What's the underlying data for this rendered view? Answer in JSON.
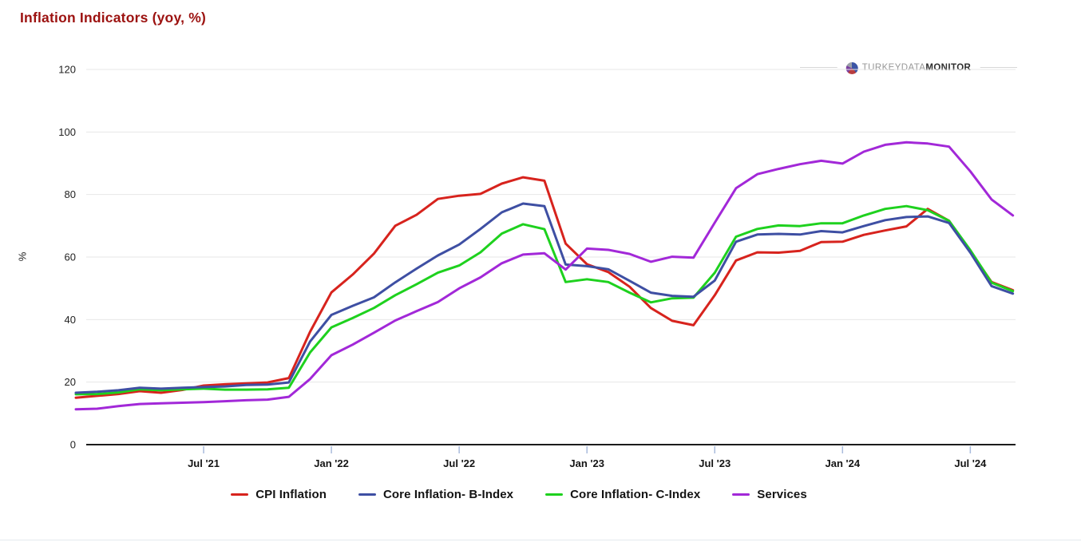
{
  "page": {
    "title": "Inflation Indicators (yoy, %)"
  },
  "branding": {
    "part1": "TURKEY",
    "part2": "DATA",
    "part3": "MONITOR"
  },
  "chart_data": {
    "type": "line",
    "title": "Inflation Indicators (yoy, %)",
    "xlabel": "",
    "ylabel": "%",
    "ylim": [
      0,
      120
    ],
    "y_ticks": [
      0,
      20,
      40,
      60,
      80,
      100,
      120
    ],
    "grid": "horizontal",
    "legend_position": "bottom",
    "months": [
      "Jan 2021",
      "Feb 2021",
      "Mar 2021",
      "Apr 2021",
      "May 2021",
      "Jun 2021",
      "Jul 2021",
      "Aug 2021",
      "Sep 2021",
      "Oct 2021",
      "Nov 2021",
      "Dec 2021",
      "Jan 2022",
      "Feb 2022",
      "Mar 2022",
      "Apr 2022",
      "May 2022",
      "Jun 2022",
      "Jul 2022",
      "Aug 2022",
      "Sep 2022",
      "Oct 2022",
      "Nov 2022",
      "Dec 2022",
      "Jan 2023",
      "Feb 2023",
      "Mar 2023",
      "Apr 2023",
      "May 2023",
      "Jun 2023",
      "Jul 2023",
      "Aug 2023",
      "Sep 2023",
      "Oct 2023",
      "Nov 2023",
      "Dec 2023",
      "Jan 2024",
      "Feb 2024",
      "Mar 2024",
      "Apr 2024",
      "May 2024",
      "Jun 2024",
      "Jul 2024",
      "Aug 2024",
      "Sep 2024"
    ],
    "x_ticks": [
      {
        "label": "Jul '21",
        "index": 6
      },
      {
        "label": "Jan '22",
        "index": 12
      },
      {
        "label": "Jul '22",
        "index": 18
      },
      {
        "label": "Jan '23",
        "index": 24
      },
      {
        "label": "Jul '23",
        "index": 30
      },
      {
        "label": "Jan '24",
        "index": 36
      },
      {
        "label": "Jul '24",
        "index": 42
      }
    ],
    "series": [
      {
        "name": "CPI Inflation",
        "color": "#d7231d",
        "values": [
          15.0,
          15.6,
          16.2,
          17.1,
          16.6,
          17.5,
          18.9,
          19.3,
          19.6,
          19.9,
          21.3,
          36.1,
          48.7,
          54.4,
          61.1,
          70.0,
          73.5,
          78.6,
          79.6,
          80.2,
          83.5,
          85.5,
          84.4,
          64.3,
          57.7,
          55.2,
          50.5,
          43.7,
          39.6,
          38.2,
          47.8,
          58.9,
          61.5,
          61.4,
          62.0,
          64.8,
          64.9,
          67.1,
          68.5,
          69.8,
          75.4,
          71.6,
          61.8,
          52.0,
          49.4
        ]
      },
      {
        "name": "Core Inflation- B-Index",
        "color": "#3e4fa3",
        "values": [
          16.6,
          16.9,
          17.4,
          18.2,
          17.9,
          18.2,
          18.4,
          18.6,
          19.1,
          19.2,
          19.9,
          33.0,
          41.5,
          44.4,
          47.1,
          51.9,
          56.3,
          60.5,
          64.0,
          69.0,
          74.3,
          77.1,
          76.3,
          57.6,
          57.1,
          56.1,
          52.4,
          48.6,
          47.6,
          47.3,
          52.5,
          64.9,
          67.2,
          67.4,
          67.2,
          68.3,
          67.9,
          69.9,
          71.8,
          72.8,
          73.0,
          70.9,
          61.4,
          50.7,
          48.3
        ]
      },
      {
        "name": "Core Inflation- C-Index",
        "color": "#1ed11e",
        "values": [
          16.1,
          16.2,
          16.7,
          17.7,
          17.4,
          17.7,
          17.9,
          17.6,
          17.6,
          17.7,
          18.2,
          29.5,
          37.5,
          40.5,
          43.7,
          47.8,
          51.3,
          55.0,
          57.3,
          61.5,
          67.5,
          70.5,
          68.9,
          52.0,
          52.9,
          52.0,
          48.6,
          45.5,
          46.8,
          47.0,
          55.0,
          66.5,
          69.0,
          70.1,
          69.9,
          70.8,
          70.8,
          73.3,
          75.4,
          76.3,
          75.0,
          71.6,
          62.2,
          51.8,
          49.1
        ]
      },
      {
        "name": "Services",
        "color": "#a228d8",
        "values": [
          11.3,
          11.5,
          12.3,
          13.0,
          13.2,
          13.4,
          13.6,
          13.9,
          14.2,
          14.4,
          15.3,
          21.0,
          28.6,
          32.0,
          35.8,
          39.7,
          42.7,
          45.6,
          50.0,
          53.5,
          58.0,
          60.8,
          61.2,
          56.0,
          62.7,
          62.3,
          61.0,
          58.5,
          60.1,
          59.8,
          71.0,
          82.0,
          86.5,
          88.2,
          89.7,
          90.8,
          89.9,
          93.7,
          95.9,
          96.7,
          96.3,
          95.3,
          87.4,
          78.4,
          73.3
        ]
      }
    ]
  }
}
